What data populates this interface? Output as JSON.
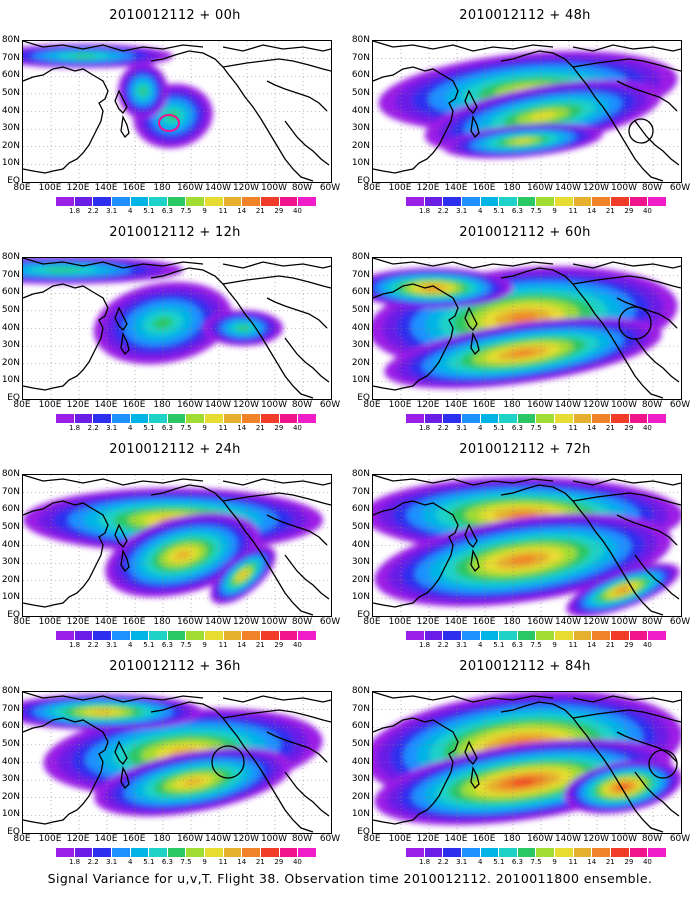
{
  "footer": "Signal Variance for u,v,T. Flight 38. Observation time 2010012112. 2010011800 ensemble.",
  "lat_labels": [
    "80N",
    "70N",
    "60N",
    "50N",
    "40N",
    "30N",
    "20N",
    "10N",
    "EQ"
  ],
  "lon_labels": [
    "80E",
    "100E",
    "120E",
    "140E",
    "160E",
    "180",
    "160W",
    "140W",
    "120W",
    "100W",
    "80W",
    "60W"
  ],
  "colorbar": {
    "levels": [
      "1.8",
      "2.2",
      "3.1",
      "4",
      "5.1",
      "6.3",
      "7.5",
      "9",
      "11",
      "14",
      "21",
      "29",
      "40"
    ],
    "colors": [
      "#9b1fe6",
      "#6b1fe6",
      "#2e2eee",
      "#1e90ff",
      "#00b4e6",
      "#1ed2c8",
      "#2ac864",
      "#a0dc32",
      "#e6dc32",
      "#e6af2d",
      "#f08228",
      "#f03c28",
      "#f0148c",
      "#f01ec8"
    ]
  },
  "panels": [
    {
      "title": "2010012112 + 00h",
      "lead_hours": 0
    },
    {
      "title": "2010012112 + 48h",
      "lead_hours": 48
    },
    {
      "title": "2010012112 + 12h",
      "lead_hours": 12
    },
    {
      "title": "2010012112 + 60h",
      "lead_hours": 60
    },
    {
      "title": "2010012112 + 24h",
      "lead_hours": 24
    },
    {
      "title": "2010012112 + 72h",
      "lead_hours": 72
    },
    {
      "title": "2010012112 + 36h",
      "lead_hours": 36
    },
    {
      "title": "2010012112 + 84h",
      "lead_hours": 84
    }
  ]
}
